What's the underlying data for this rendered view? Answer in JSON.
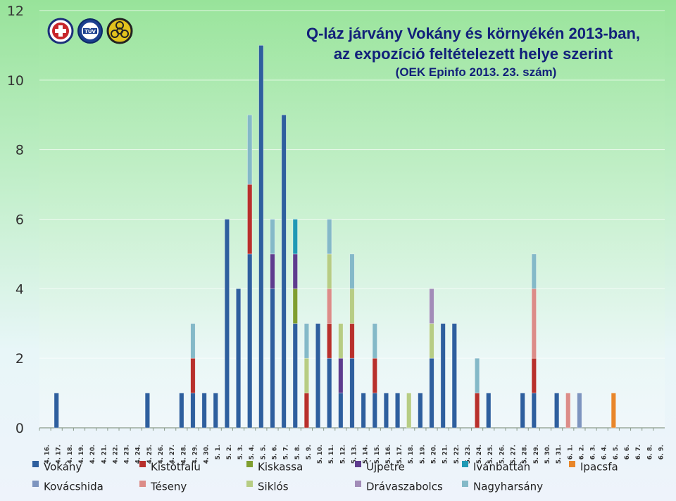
{
  "title_lines": [
    "Q-láz járvány Vokány és környékén 2013-ban,",
    "az expozíció feltételezett helye szerint",
    "(OEK Epinfo 2013. 23. szám)"
  ],
  "logos": [
    "medical-cross-logo",
    "tuv-certification-logo",
    "biohazard-logo"
  ],
  "chart_data": {
    "type": "bar",
    "stacked": true,
    "ylim": [
      0,
      12
    ],
    "yticks": [
      0,
      2,
      4,
      6,
      8,
      10,
      12
    ],
    "categories": [
      "4. 16.",
      "4. 17.",
      "4. 18.",
      "4. 19.",
      "4. 20.",
      "4. 21.",
      "4. 22.",
      "4. 23.",
      "4. 24.",
      "4. 25.",
      "4. 26.",
      "4. 27.",
      "4. 28.",
      "4. 29.",
      "4. 30.",
      "5. 1.",
      "5. 2.",
      "5. 3.",
      "5. 4.",
      "5. 5.",
      "5. 6.",
      "5. 7.",
      "5. 8.",
      "5. 9.",
      "5. 10.",
      "5. 11.",
      "5. 12.",
      "5. 13.",
      "5. 14.",
      "5. 15.",
      "5. 16.",
      "5. 17.",
      "5. 18.",
      "5. 19.",
      "5. 20.",
      "5. 21.",
      "5. 22.",
      "5. 23.",
      "5. 24.",
      "5. 25.",
      "5. 26.",
      "5. 27.",
      "5. 28.",
      "5. 29.",
      "5. 30.",
      "5. 31.",
      "6. 1.",
      "6. 2.",
      "6. 3.",
      "6. 4.",
      "6. 5.",
      "6. 6.",
      "6. 7.",
      "6. 8.",
      "6. 9."
    ],
    "series": [
      {
        "name": "Vokány",
        "color": "#2e5f9e",
        "values": [
          0,
          1,
          0,
          0,
          0,
          0,
          0,
          0,
          0,
          1,
          0,
          0,
          1,
          1,
          1,
          1,
          6,
          4,
          5,
          11,
          4,
          9,
          3,
          0,
          3,
          2,
          1,
          2,
          1,
          1,
          1,
          1,
          0,
          1,
          2,
          3,
          3,
          0,
          0,
          1,
          0,
          0,
          1,
          1,
          0,
          1,
          0,
          0,
          0,
          0,
          0,
          0,
          0,
          0,
          0
        ]
      },
      {
        "name": "Kistótfalu",
        "color": "#b8302c",
        "values": [
          0,
          0,
          0,
          0,
          0,
          0,
          0,
          0,
          0,
          0,
          0,
          0,
          0,
          1,
          0,
          0,
          0,
          0,
          2,
          0,
          0,
          0,
          0,
          1,
          0,
          1,
          0,
          1,
          0,
          1,
          0,
          0,
          0,
          0,
          0,
          0,
          0,
          0,
          1,
          0,
          0,
          0,
          0,
          1,
          0,
          0,
          0,
          0,
          0,
          0,
          0,
          0,
          0,
          0,
          0
        ]
      },
      {
        "name": "Kiskassa",
        "color": "#7f9e2f",
        "values": [
          0,
          0,
          0,
          0,
          0,
          0,
          0,
          0,
          0,
          0,
          0,
          0,
          0,
          0,
          0,
          0,
          0,
          0,
          0,
          0,
          0,
          0,
          1,
          0,
          0,
          0,
          0,
          0,
          0,
          0,
          0,
          0,
          0,
          0,
          0,
          0,
          0,
          0,
          0,
          0,
          0,
          0,
          0,
          0,
          0,
          0,
          0,
          0,
          0,
          0,
          0,
          0,
          0,
          0,
          0
        ]
      },
      {
        "name": "Újpetre",
        "color": "#5e3c8e",
        "values": [
          0,
          0,
          0,
          0,
          0,
          0,
          0,
          0,
          0,
          0,
          0,
          0,
          0,
          0,
          0,
          0,
          0,
          0,
          0,
          0,
          1,
          0,
          1,
          0,
          0,
          0,
          1,
          0,
          0,
          0,
          0,
          0,
          0,
          0,
          0,
          0,
          0,
          0,
          0,
          0,
          0,
          0,
          0,
          0,
          0,
          0,
          0,
          0,
          0,
          0,
          0,
          0,
          0,
          0,
          0
        ]
      },
      {
        "name": "Ivánbattán",
        "color": "#1f99b4",
        "values": [
          0,
          0,
          0,
          0,
          0,
          0,
          0,
          0,
          0,
          0,
          0,
          0,
          0,
          0,
          0,
          0,
          0,
          0,
          0,
          0,
          0,
          0,
          1,
          0,
          0,
          0,
          0,
          0,
          0,
          0,
          0,
          0,
          0,
          0,
          0,
          0,
          0,
          0,
          0,
          0,
          0,
          0,
          0,
          0,
          0,
          0,
          0,
          0,
          0,
          0,
          0,
          0,
          0,
          0,
          0
        ]
      },
      {
        "name": "Ipacsfa",
        "color": "#e8862a",
        "values": [
          0,
          0,
          0,
          0,
          0,
          0,
          0,
          0,
          0,
          0,
          0,
          0,
          0,
          0,
          0,
          0,
          0,
          0,
          0,
          0,
          0,
          0,
          0,
          0,
          0,
          0,
          0,
          0,
          0,
          0,
          0,
          0,
          0,
          0,
          0,
          0,
          0,
          0,
          0,
          0,
          0,
          0,
          0,
          0,
          0,
          0,
          0,
          0,
          0,
          0,
          1,
          0,
          0,
          0,
          0
        ]
      },
      {
        "name": "Kovácshida",
        "color": "#7d94bf",
        "values": [
          0,
          0,
          0,
          0,
          0,
          0,
          0,
          0,
          0,
          0,
          0,
          0,
          0,
          0,
          0,
          0,
          0,
          0,
          0,
          0,
          0,
          0,
          0,
          0,
          0,
          0,
          0,
          0,
          0,
          0,
          0,
          0,
          0,
          0,
          0,
          0,
          0,
          0,
          0,
          0,
          0,
          0,
          0,
          0,
          0,
          0,
          0,
          1,
          0,
          0,
          0,
          0,
          0,
          0,
          0
        ]
      },
      {
        "name": "Téseny",
        "color": "#dc8c88",
        "values": [
          0,
          0,
          0,
          0,
          0,
          0,
          0,
          0,
          0,
          0,
          0,
          0,
          0,
          0,
          0,
          0,
          0,
          0,
          0,
          0,
          0,
          0,
          0,
          0,
          0,
          1,
          0,
          0,
          0,
          0,
          0,
          0,
          0,
          0,
          0,
          0,
          0,
          0,
          0,
          0,
          0,
          0,
          0,
          2,
          0,
          0,
          1,
          0,
          0,
          0,
          0,
          0,
          0,
          0,
          0
        ]
      },
      {
        "name": "Siklós",
        "color": "#b7cd84",
        "values": [
          0,
          0,
          0,
          0,
          0,
          0,
          0,
          0,
          0,
          0,
          0,
          0,
          0,
          0,
          0,
          0,
          0,
          0,
          0,
          0,
          0,
          0,
          0,
          1,
          0,
          1,
          1,
          1,
          0,
          0,
          0,
          0,
          1,
          0,
          1,
          0,
          0,
          0,
          0,
          0,
          0,
          0,
          0,
          0,
          0,
          0,
          0,
          0,
          0,
          0,
          0,
          0,
          0,
          0,
          0
        ]
      },
      {
        "name": "Drávaszabolcs",
        "color": "#a28cb8",
        "values": [
          0,
          0,
          0,
          0,
          0,
          0,
          0,
          0,
          0,
          0,
          0,
          0,
          0,
          0,
          0,
          0,
          0,
          0,
          0,
          0,
          0,
          0,
          0,
          0,
          0,
          0,
          0,
          0,
          0,
          0,
          0,
          0,
          0,
          0,
          1,
          0,
          0,
          0,
          0,
          0,
          0,
          0,
          0,
          0,
          0,
          0,
          0,
          0,
          0,
          0,
          0,
          0,
          0,
          0,
          0
        ]
      },
      {
        "name": "Nagyharsány",
        "color": "#84b9c8",
        "values": [
          0,
          0,
          0,
          0,
          0,
          0,
          0,
          0,
          0,
          0,
          0,
          0,
          0,
          1,
          0,
          0,
          0,
          0,
          2,
          0,
          1,
          0,
          0,
          1,
          0,
          1,
          0,
          1,
          0,
          1,
          0,
          0,
          0,
          0,
          0,
          0,
          0,
          0,
          1,
          0,
          0,
          0,
          0,
          1,
          0,
          0,
          0,
          0,
          0,
          0,
          0,
          0,
          0,
          0,
          0
        ]
      }
    ]
  }
}
